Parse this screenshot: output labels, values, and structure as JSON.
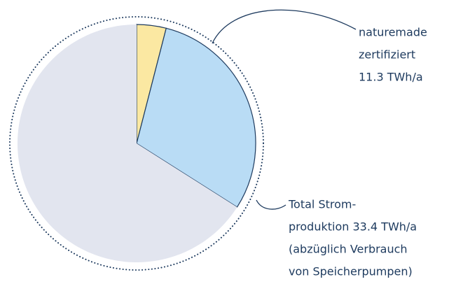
{
  "chart_data": {
    "type": "pie",
    "categories": [
      null,
      null,
      null
    ],
    "values": [
      4,
      30,
      66
    ],
    "colors": [
      "#fbe8a2",
      "#b9dcf5",
      "#e2e5ef"
    ],
    "annotations": [
      {
        "lines": [
          "naturemade",
          "zertifiziert",
          "11.3 TWh/a"
        ]
      },
      {
        "lines": [
          "Total Strom-",
          "produktion 33.4 TWh/a",
          "(abzüglich Verbrauch",
          "von Speicherpumpen)"
        ]
      }
    ]
  }
}
